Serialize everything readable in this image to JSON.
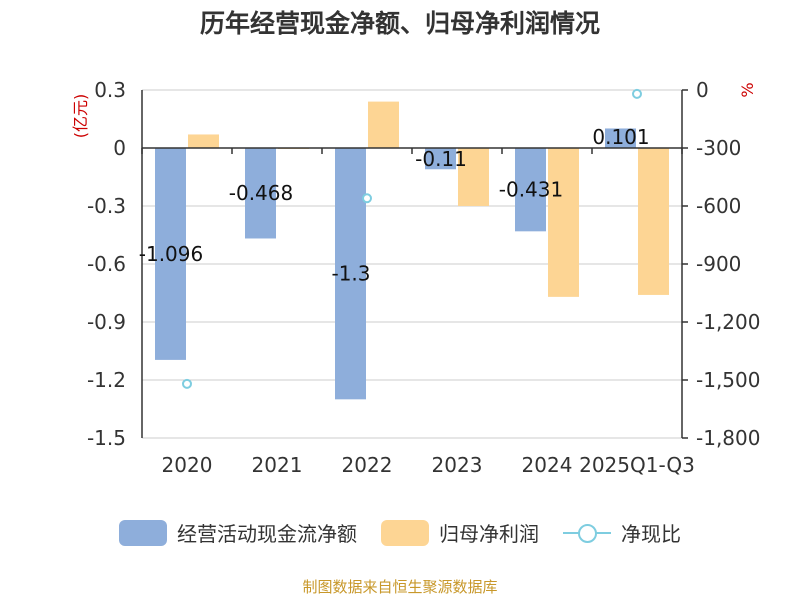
{
  "chart_data": {
    "type": "bar",
    "title": "历年经营现金净额、归母净利润情况",
    "categories": [
      "2020",
      "2021",
      "2022",
      "2023",
      "2024",
      "2025Q1-Q3"
    ],
    "series": [
      {
        "name": "经营活动现金流净额",
        "axis": "left",
        "color": "#8eaedb",
        "values": [
          -1.096,
          -0.468,
          -1.3,
          -0.11,
          -0.431,
          0.101
        ],
        "labels": [
          "-1.096",
          "-0.468",
          "-1.3",
          "-0.11",
          "-0.431",
          "0.101"
        ]
      },
      {
        "name": "归母净利润",
        "axis": "left",
        "color": "#fdd594",
        "values": [
          0.07,
          0.0,
          0.24,
          -0.3,
          -0.77,
          -0.76
        ]
      },
      {
        "name": "净现比",
        "axis": "right",
        "type": "scatter",
        "color": "#7ecde0",
        "values": [
          -1520,
          null,
          -560,
          null,
          null,
          -20
        ]
      }
    ],
    "ylabel_left": "(亿元)",
    "ylabel_right": "%",
    "ylim_left": [
      -1.5,
      0.3
    ],
    "ylim_right": [
      -1800,
      0
    ],
    "yticks_left": [
      "0.3",
      "0",
      "-0.3",
      "-0.6",
      "-0.9",
      "-1.2",
      "-1.5"
    ],
    "yticks_right": [
      "0",
      "-300",
      "-600",
      "-900",
      "-1,200",
      "-1,500",
      "-1,800"
    ],
    "legend": [
      "经营活动现金流净额",
      "归母净利润",
      "净现比"
    ],
    "legend_position": "bottom",
    "grid": true
  },
  "source": "制图数据来自恒生聚源数据库"
}
